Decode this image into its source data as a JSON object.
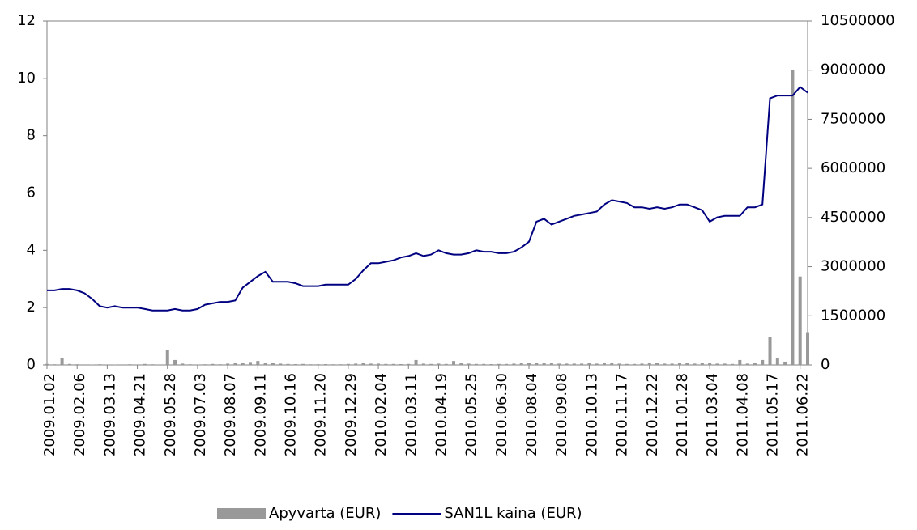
{
  "chart_data": {
    "type": "combo",
    "categories": [
      "2009.01.02",
      null,
      null,
      null,
      "2009.02.06",
      null,
      null,
      null,
      "2009.03.13",
      null,
      null,
      null,
      "2009.04.21",
      null,
      null,
      null,
      "2009.05.28",
      null,
      null,
      null,
      "2009.07.03",
      null,
      null,
      null,
      "2009.08.07",
      null,
      null,
      null,
      "2009.09.11",
      null,
      null,
      null,
      "2009.10.16",
      null,
      null,
      null,
      "2009.11.20",
      null,
      null,
      null,
      "2009.12.29",
      null,
      null,
      null,
      "2010.02.04",
      null,
      null,
      null,
      "2010.03.11",
      null,
      null,
      null,
      "2010.04.19",
      null,
      null,
      null,
      "2010.05.25",
      null,
      null,
      null,
      "2010.06.30",
      null,
      null,
      null,
      "2010.08.04",
      null,
      null,
      null,
      "2010.09.08",
      null,
      null,
      null,
      "2010.10.13",
      null,
      null,
      null,
      "2010.11.17",
      null,
      null,
      null,
      "2010.12.22",
      null,
      null,
      null,
      "2011.01.28",
      null,
      null,
      null,
      "2011.03.04",
      null,
      null,
      null,
      "2011.04.08",
      null,
      null,
      null,
      "2011.05.17",
      null,
      null,
      null,
      "2011.06.22",
      null
    ],
    "series": [
      {
        "name": "Apyvarta (EUR)",
        "type": "bar",
        "axis": "y2",
        "color": "#999999",
        "values": [
          30000,
          20000,
          200000,
          30000,
          20000,
          15000,
          10000,
          20000,
          15000,
          10000,
          15000,
          20000,
          15000,
          30000,
          20000,
          15000,
          450000,
          150000,
          40000,
          20000,
          15000,
          20000,
          30000,
          20000,
          40000,
          50000,
          60000,
          90000,
          120000,
          70000,
          50000,
          40000,
          30000,
          25000,
          30000,
          20000,
          20000,
          25000,
          20000,
          20000,
          30000,
          40000,
          50000,
          40000,
          40000,
          30000,
          30000,
          25000,
          30000,
          150000,
          40000,
          30000,
          40000,
          30000,
          120000,
          60000,
          40000,
          30000,
          30000,
          25000,
          30000,
          30000,
          40000,
          50000,
          60000,
          60000,
          50000,
          50000,
          40000,
          40000,
          40000,
          40000,
          50000,
          40000,
          50000,
          50000,
          40000,
          30000,
          30000,
          40000,
          60000,
          50000,
          40000,
          40000,
          50000,
          50000,
          40000,
          60000,
          60000,
          40000,
          40000,
          30000,
          150000,
          40000,
          60000,
          150000,
          850000,
          200000,
          100000,
          9000000,
          2700000,
          1000000
        ]
      },
      {
        "name": "SAN1L kaina (EUR)",
        "type": "line",
        "color": "#000080",
        "values": [
          2.6,
          2.6,
          2.65,
          2.65,
          2.6,
          2.5,
          2.3,
          2.05,
          2.0,
          2.05,
          2.0,
          2.0,
          2.0,
          1.95,
          1.9,
          1.9,
          1.9,
          1.95,
          1.9,
          1.9,
          1.95,
          2.1,
          2.15,
          2.2,
          2.2,
          2.25,
          2.7,
          2.9,
          3.1,
          3.25,
          2.9,
          2.9,
          2.9,
          2.85,
          2.75,
          2.75,
          2.75,
          2.8,
          2.8,
          2.8,
          2.8,
          3.0,
          3.3,
          3.55,
          3.55,
          3.6,
          3.65,
          3.75,
          3.8,
          3.9,
          3.8,
          3.85,
          4.0,
          3.9,
          3.85,
          3.85,
          3.9,
          4.0,
          3.95,
          3.95,
          3.9,
          3.9,
          3.95,
          4.1,
          4.3,
          5.0,
          5.1,
          4.9,
          5.0,
          5.1,
          5.2,
          5.25,
          5.3,
          5.35,
          5.6,
          5.75,
          5.7,
          5.65,
          5.5,
          5.5,
          5.45,
          5.5,
          5.45,
          5.5,
          5.6,
          5.6,
          5.5,
          5.4,
          5.0,
          5.15,
          5.2,
          5.2,
          5.2,
          5.5,
          5.5,
          5.6,
          9.3,
          9.4,
          9.4,
          9.4,
          9.7,
          9.5
        ]
      }
    ],
    "ylim": [
      0,
      12
    ],
    "yticks": [
      0,
      2,
      4,
      6,
      8,
      10,
      12
    ],
    "y2lim": [
      0,
      10500000
    ],
    "y2ticks": [
      0,
      1500000,
      3000000,
      4500000,
      6000000,
      7500000,
      9000000,
      10500000
    ],
    "legend": "bottom"
  }
}
